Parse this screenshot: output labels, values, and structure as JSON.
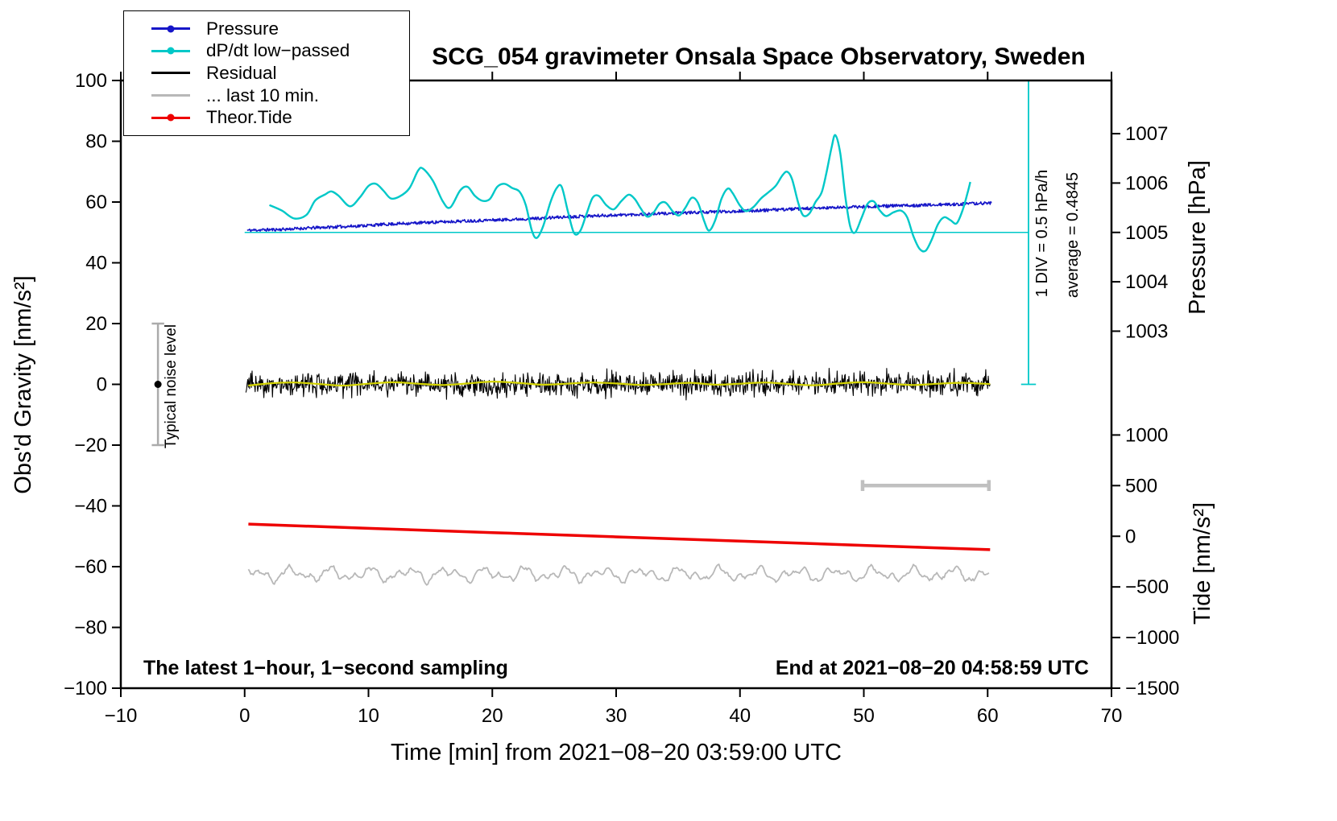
{
  "legend": {
    "items": [
      {
        "label": "Pressure",
        "color": "#1616c8",
        "dot": true
      },
      {
        "label": "dP/dt low−passed",
        "color": "#00c8c8",
        "dot": true
      },
      {
        "label": "Residual",
        "color": "#000000",
        "dot": false
      },
      {
        "label": "... last 10 min.",
        "color": "#b8b8b8",
        "dot": false
      },
      {
        "label": "Theor.Tide",
        "color": "#ee0000",
        "dot": true
      }
    ]
  },
  "chart_data": {
    "type": "line",
    "title": "SCG_054 gravimeter Onsala Space Observatory, Sweden",
    "xlabel": "Time [min] from 2021−08−20 03:59:00 UTC",
    "ylabel": "Obs'd Gravity [nm/s²]",
    "y2label_pressure": "Pressure [hPa]",
    "y2label_tide": "Tide [nm/s²]",
    "xlim": [
      -10,
      70
    ],
    "ylim": [
      -100,
      100
    ],
    "grid": false,
    "x_ticks": [
      {
        "v": -10,
        "label": "−10"
      },
      {
        "v": 0,
        "label": "0"
      },
      {
        "v": 10,
        "label": "10"
      },
      {
        "v": 20,
        "label": "20"
      },
      {
        "v": 30,
        "label": "30"
      },
      {
        "v": 40,
        "label": "40"
      },
      {
        "v": 50,
        "label": "50"
      },
      {
        "v": 60,
        "label": "60"
      },
      {
        "v": 70,
        "label": "70"
      }
    ],
    "y_ticks": [
      {
        "v": -100,
        "label": "−100"
      },
      {
        "v": -80,
        "label": "−80"
      },
      {
        "v": -60,
        "label": "−60"
      },
      {
        "v": -40,
        "label": "−40"
      },
      {
        "v": -20,
        "label": "−20"
      },
      {
        "v": 0,
        "label": "0"
      },
      {
        "v": 20,
        "label": "20"
      },
      {
        "v": 40,
        "label": "40"
      },
      {
        "v": 60,
        "label": "60"
      },
      {
        "v": 80,
        "label": "80"
      },
      {
        "v": 100,
        "label": "100"
      }
    ],
    "pressure_ticks": [
      {
        "g": 17.5,
        "label": "1003"
      },
      {
        "g": 33.75,
        "label": "1004"
      },
      {
        "g": 50,
        "label": "1005"
      },
      {
        "g": 66.25,
        "label": "1006"
      },
      {
        "g": 82.5,
        "label": "1007"
      }
    ],
    "tide_ticks": [
      {
        "g": -16.67,
        "label": "1000"
      },
      {
        "g": -33.33,
        "label": "500"
      },
      {
        "g": -50,
        "label": "0"
      },
      {
        "g": -66.67,
        "label": "−500"
      },
      {
        "g": -83.33,
        "label": "−1000"
      },
      {
        "g": -100,
        "label": "−1500"
      }
    ],
    "annotations": {
      "div_note": "1 DIV = 0.5 hPa/h",
      "average_note": "average = 0.4845",
      "noise_label": "Typical noise level",
      "footer_left": "The latest 1−hour, 1−second sampling",
      "footer_right": "End at 2021−08−20 04:58:59 UTC"
    },
    "reference": {
      "hline": {
        "y": 50,
        "x0": 0,
        "x1": 63.3,
        "color": "#00c8c8",
        "width": 1.5
      },
      "vbar": {
        "x": 63.3,
        "y0": 0,
        "y1": 100,
        "cap": 0.6,
        "color": "#00c8c8",
        "width": 1.8
      },
      "scalebar": {
        "y": -33.3,
        "x0": 49.9,
        "x1": 60.1,
        "cap": 1.8,
        "color": "#c0c0c0",
        "width": 4.5
      },
      "noise_marker": {
        "x": -7,
        "y": 0,
        "err": 20,
        "cap": 0.5,
        "color": "#ababab",
        "dot_r": 4.5
      }
    },
    "series": [
      {
        "id": "residual",
        "name": "Residual",
        "color": "#000000",
        "width": 1.1,
        "kind": "noise",
        "x0": 0.1,
        "x1": 60.2,
        "step": 0.05,
        "base": 0,
        "amp": 3.8,
        "spike_p": 0.006,
        "spike_amp": 6.5,
        "seed": 23
      },
      {
        "id": "residual-lowpass",
        "name": "Residual low-passed (yellow)",
        "color": "#d4d400",
        "width": 2.2,
        "kind": "smooth",
        "anchors": [
          [
            0.3,
            -0.4
          ],
          [
            2,
            0.3
          ],
          [
            4,
            0.6
          ],
          [
            6,
            0.1
          ],
          [
            8,
            -0.4
          ],
          [
            10,
            0.2
          ],
          [
            12,
            0.7
          ],
          [
            14,
            0.2
          ],
          [
            16,
            -0.2
          ],
          [
            18,
            0.3
          ],
          [
            20,
            0.9
          ],
          [
            22,
            0.5
          ],
          [
            24,
            -0.1
          ],
          [
            26,
            0.2
          ],
          [
            28,
            0.6
          ],
          [
            30,
            0.3
          ],
          [
            32,
            -0.2
          ],
          [
            34,
            0.1
          ],
          [
            36,
            0.5
          ],
          [
            38,
            -0.1
          ],
          [
            40,
            0.2
          ],
          [
            42,
            0.6
          ],
          [
            44,
            0.1
          ],
          [
            46,
            -0.3
          ],
          [
            48,
            0.3
          ],
          [
            50,
            0.7
          ],
          [
            52,
            0.2
          ],
          [
            54,
            -0.2
          ],
          [
            56,
            0.2
          ],
          [
            58,
            0.5
          ],
          [
            60.2,
            0.1
          ]
        ]
      },
      {
        "id": "last10min",
        "name": "... last 10 min.",
        "color": "#b8b8b8",
        "width": 1.8,
        "kind": "wiggle",
        "x0": 0.3,
        "x1": 60.2,
        "step": 0.1,
        "base": -62.5,
        "noise": 0.4,
        "components": [
          [
            1.5,
            2.0,
            0.3
          ],
          [
            1.0,
            3.6,
            1.9
          ],
          [
            0.7,
            7.1,
            0.8
          ]
        ],
        "seed": 5
      },
      {
        "id": "theor-tide",
        "name": "Theor.Tide",
        "color": "#ee0000",
        "width": 3.5,
        "kind": "anchors",
        "anchors": [
          [
            0.3,
            -46
          ],
          [
            10,
            -47.4
          ],
          [
            20,
            -48.8
          ],
          [
            30,
            -50.2
          ],
          [
            40,
            -51.6
          ],
          [
            50,
            -53
          ],
          [
            60.2,
            -54.4
          ]
        ]
      },
      {
        "id": "pressure",
        "name": "Pressure",
        "color": "#1616c8",
        "width": 1.6,
        "kind": "noisy-trend",
        "step": 0.05,
        "noise": 0.5,
        "seed": 11,
        "anchors": [
          [
            0.2,
            50.7
          ],
          [
            3,
            51.0
          ],
          [
            6,
            51.6
          ],
          [
            9,
            52.1
          ],
          [
            12,
            52.8
          ],
          [
            15,
            53.3
          ],
          [
            18,
            53.8
          ],
          [
            21,
            54.2
          ],
          [
            24,
            54.7
          ],
          [
            27,
            55.3
          ],
          [
            30,
            55.7
          ],
          [
            33,
            56.1
          ],
          [
            36,
            56.5
          ],
          [
            39,
            56.9
          ],
          [
            42,
            57.3
          ],
          [
            45,
            57.8
          ],
          [
            48,
            58.2
          ],
          [
            51,
            58.6
          ],
          [
            54,
            58.9
          ],
          [
            57,
            59.2
          ],
          [
            60.3,
            59.7
          ]
        ]
      },
      {
        "id": "dpdt",
        "name": "dP/dt low−passed",
        "color": "#00c8c8",
        "width": 2.4,
        "kind": "smooth",
        "anchors": [
          [
            2,
            59
          ],
          [
            3,
            57.2
          ],
          [
            4,
            54.6
          ],
          [
            5,
            55.8
          ],
          [
            5.7,
            60.5
          ],
          [
            6.5,
            62.5
          ],
          [
            7,
            63.5
          ],
          [
            7.6,
            62
          ],
          [
            8.5,
            58.6
          ],
          [
            9.3,
            61.5
          ],
          [
            10,
            65.3
          ],
          [
            10.6,
            66
          ],
          [
            11.2,
            63.8
          ],
          [
            11.8,
            61.2
          ],
          [
            12.5,
            61.8
          ],
          [
            13.3,
            64.5
          ],
          [
            14,
            70.3
          ],
          [
            14.4,
            71
          ],
          [
            15.2,
            67
          ],
          [
            16,
            60.2
          ],
          [
            16.6,
            58.2
          ],
          [
            17.4,
            63.8
          ],
          [
            18,
            65
          ],
          [
            18.6,
            62
          ],
          [
            19.2,
            60.4
          ],
          [
            19.8,
            61
          ],
          [
            20.4,
            65
          ],
          [
            21,
            66
          ],
          [
            21.6,
            64.6
          ],
          [
            22.2,
            63.4
          ],
          [
            22.7,
            59
          ],
          [
            23.2,
            50.5
          ],
          [
            23.6,
            48.2
          ],
          [
            24.1,
            52
          ],
          [
            24.7,
            60
          ],
          [
            25.2,
            64.6
          ],
          [
            25.6,
            65
          ],
          [
            26.1,
            57
          ],
          [
            26.6,
            49.8
          ],
          [
            27.1,
            50.5
          ],
          [
            27.6,
            56
          ],
          [
            28.1,
            61.4
          ],
          [
            28.6,
            62
          ],
          [
            29.2,
            59
          ],
          [
            29.8,
            57.6
          ],
          [
            30.4,
            60.2
          ],
          [
            31,
            62.4
          ],
          [
            31.5,
            61
          ],
          [
            32,
            57.8
          ],
          [
            32.5,
            55.2
          ],
          [
            33,
            56.4
          ],
          [
            33.5,
            59.4
          ],
          [
            34,
            59.8
          ],
          [
            34.6,
            56.8
          ],
          [
            35.1,
            55.6
          ],
          [
            35.6,
            58.2
          ],
          [
            36.1,
            61.4
          ],
          [
            36.6,
            59.8
          ],
          [
            37.1,
            53.8
          ],
          [
            37.5,
            50.6
          ],
          [
            38,
            54
          ],
          [
            38.5,
            61
          ],
          [
            39,
            64.4
          ],
          [
            39.4,
            63
          ],
          [
            40,
            58.8
          ],
          [
            40.5,
            57
          ],
          [
            41.1,
            58.4
          ],
          [
            41.7,
            61.2
          ],
          [
            42.3,
            63.2
          ],
          [
            42.9,
            65.4
          ],
          [
            43.4,
            68.6
          ],
          [
            43.8,
            70
          ],
          [
            44.2,
            67.6
          ],
          [
            44.7,
            59.8
          ],
          [
            45.1,
            55.6
          ],
          [
            45.6,
            56.2
          ],
          [
            46.1,
            60
          ],
          [
            46.6,
            63.2
          ],
          [
            47,
            70
          ],
          [
            47.4,
            78
          ],
          [
            47.7,
            82
          ],
          [
            48.1,
            76
          ],
          [
            48.5,
            62
          ],
          [
            48.9,
            52
          ],
          [
            49.3,
            50
          ],
          [
            49.8,
            54.6
          ],
          [
            50.3,
            59.4
          ],
          [
            50.8,
            60.2
          ],
          [
            51.3,
            57.2
          ],
          [
            51.8,
            55.4
          ],
          [
            52.4,
            56.6
          ],
          [
            53,
            57.2
          ],
          [
            53.5,
            55
          ],
          [
            54,
            48.8
          ],
          [
            54.5,
            44.6
          ],
          [
            55,
            44
          ],
          [
            55.5,
            47.8
          ],
          [
            56,
            52.8
          ],
          [
            56.5,
            55
          ],
          [
            57,
            54
          ],
          [
            57.5,
            53
          ],
          [
            58,
            57.6
          ],
          [
            58.4,
            63.4
          ],
          [
            58.6,
            66.6
          ]
        ]
      }
    ]
  }
}
